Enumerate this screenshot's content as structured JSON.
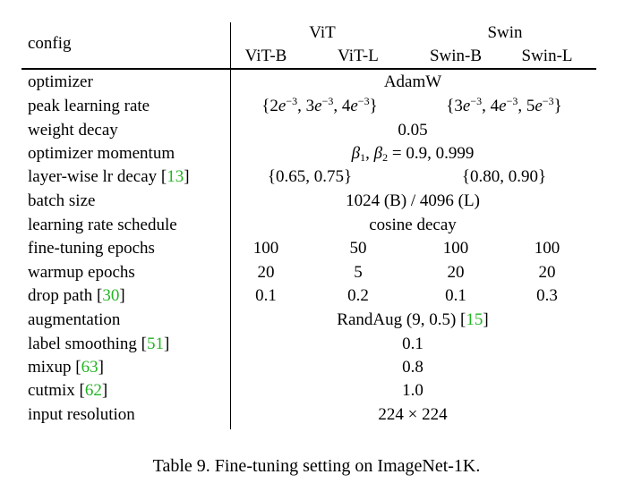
{
  "table": {
    "header": {
      "config": "config",
      "vit": "ViT",
      "swin": "Swin",
      "vit_b": "ViT-B",
      "vit_l": "ViT-L",
      "swin_b": "Swin-B",
      "swin_l": "Swin-L"
    },
    "rows": {
      "optimizer": {
        "label": "optimizer",
        "value": "AdamW"
      },
      "peak_lr": {
        "label": "peak learning rate",
        "vit": "{2e−3, 3e−3, 4e−3}",
        "swin": "{3e−3, 4e−3, 5e−3}"
      },
      "weight_decay": {
        "label": "weight decay",
        "value": "0.05"
      },
      "momentum": {
        "label": "optimizer momentum",
        "value": "β1, β2 = 0.9, 0.999"
      },
      "layer_decay": {
        "label": "layer-wise lr decay [",
        "cite": "13",
        "close": "]",
        "vit": "{0.65, 0.75}",
        "swin": "{0.80, 0.90}"
      },
      "batch_size": {
        "label": "batch size",
        "value": "1024 (B) / 4096 (L)"
      },
      "schedule": {
        "label": "learning rate schedule",
        "value": "cosine decay"
      },
      "ft_epochs": {
        "label": "fine-tuning epochs",
        "values": [
          "100",
          "50",
          "100",
          "100"
        ]
      },
      "warmup": {
        "label": "warmup epochs",
        "values": [
          "20",
          "5",
          "20",
          "20"
        ]
      },
      "drop_path": {
        "label": "drop path [",
        "cite": "30",
        "close": "]",
        "values": [
          "0.1",
          "0.2",
          "0.1",
          "0.3"
        ]
      },
      "augmentation": {
        "label": "augmentation",
        "value": "RandAug (9, 0.5) [",
        "cite": "15",
        "close": "]"
      },
      "label_smoothing": {
        "label": "label smoothing [",
        "cite": "51",
        "close": "]",
        "value": "0.1"
      },
      "mixup": {
        "label": "mixup [",
        "cite": "63",
        "close": "]",
        "value": "0.8"
      },
      "cutmix": {
        "label": "cutmix [",
        "cite": "62",
        "close": "]",
        "value": "1.0"
      },
      "input_res": {
        "label": "input resolution",
        "value": "224 × 224"
      }
    }
  },
  "caption": "Table 9. Fine-tuning setting on ImageNet-1K."
}
